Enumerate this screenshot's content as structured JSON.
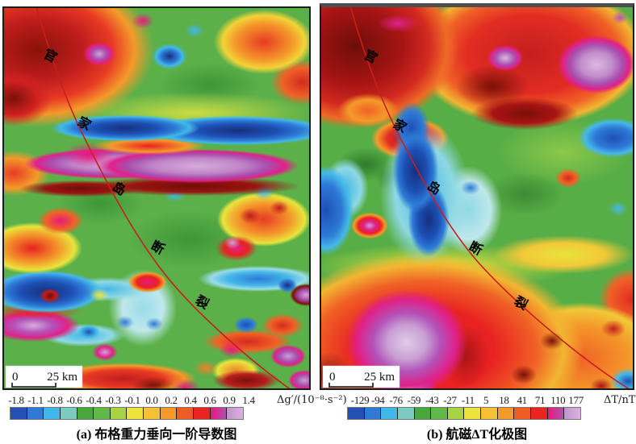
{
  "figure": {
    "fault_name_characters": [
      "官",
      "家",
      "岛",
      "断",
      "裂"
    ],
    "fault_line_color": "#c81f1e",
    "colorbar_colors": [
      "#2450b4",
      "#2e7ad6",
      "#41b8e8",
      "#7accc0",
      "#47a83c",
      "#60b846",
      "#a6d442",
      "#ece43a",
      "#f6c034",
      "#f49a2a",
      "#ee5c24",
      "#e92423",
      "#e8197c|#b050ae",
      "#c393cc|#dab2e0"
    ],
    "panels": [
      {
        "label": "a",
        "caption": "(a) 布格重力垂向一阶导数图",
        "scalebar": {
          "start": "0",
          "end": "25 km"
        },
        "colorbar": {
          "ticks": [
            "-1.8",
            "-1.1",
            "-0.8",
            "-0.6",
            "-0.4",
            "-0.3",
            "-0.1",
            "0.0",
            "0.2",
            "0.4",
            "0.6",
            "0.9",
            "1.4"
          ],
          "unit": "Δg′/(10⁻⁸·s⁻²)"
        }
      },
      {
        "label": "b",
        "caption": "(b) 航磁ΔT化极图",
        "scalebar": {
          "start": "0",
          "end": "25 km"
        },
        "colorbar": {
          "ticks": [
            "-129",
            "-94",
            "-76",
            "-59",
            "-43",
            "-27",
            "-11",
            "5",
            "18",
            "41",
            "71",
            "110",
            "177"
          ],
          "unit": "ΔT/nT"
        }
      }
    ]
  }
}
